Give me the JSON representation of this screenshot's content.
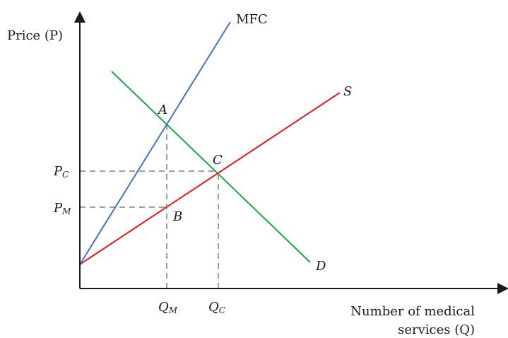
{
  "axes": {
    "y_title": "Price (P)",
    "x_title_line1": "Number of medical",
    "x_title_line2": "services (Q)"
  },
  "curves": {
    "mfc": {
      "label": "MFC",
      "color": "#4472c4"
    },
    "supply": {
      "label": "S",
      "color": "#e8191d"
    },
    "demand": {
      "label": "D",
      "color": "#1aab3c"
    }
  },
  "points": {
    "a": "A",
    "b": "B",
    "c": "C"
  },
  "ticks": {
    "pc": {
      "main": "P",
      "sub": "C"
    },
    "pm": {
      "main": "P",
      "sub": "M"
    },
    "qm": {
      "main": "Q",
      "sub": "M"
    },
    "qc": {
      "main": "Q",
      "sub": "C"
    }
  },
  "colors": {
    "axis": "#1a1a1a",
    "guide": "#a0a0a0"
  }
}
